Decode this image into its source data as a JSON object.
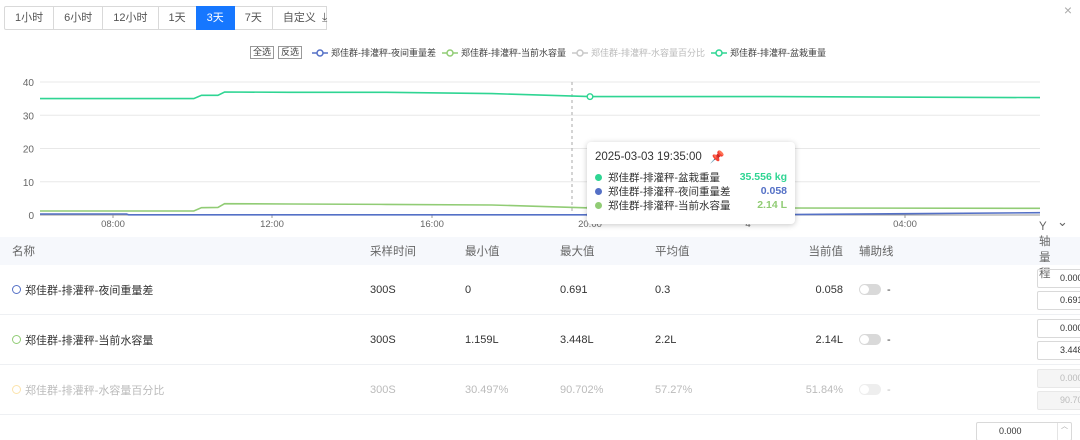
{
  "range_tabs": [
    {
      "label": "1小时"
    },
    {
      "label": "6小时"
    },
    {
      "label": "12小时"
    },
    {
      "label": "1天"
    },
    {
      "label": "3天",
      "active": true
    },
    {
      "label": "7天"
    },
    {
      "label": "自定义"
    }
  ],
  "toolbar": {
    "download_icon": "download-icon",
    "download_glyph": "⤓",
    "close_glyph": "×"
  },
  "legend": {
    "select_all": "全选",
    "invert": "反选",
    "items": [
      {
        "label": "郑佳群-排灌秤-夜间重量差",
        "color": "#5470c6",
        "enabled": true
      },
      {
        "label": "郑佳群-排灌秤-当前水容量",
        "color": "#91cc75",
        "enabled": true
      },
      {
        "label": "郑佳群-排灌秤-水容量百分比",
        "color": "#c8c8c8",
        "enabled": false
      },
      {
        "label": "郑佳群-排灌秤-盆栽重量",
        "color": "#2fd593",
        "enabled": true
      }
    ]
  },
  "chart_data": {
    "type": "line",
    "y_ticks": [
      "0",
      "10",
      "20",
      "30",
      "40"
    ],
    "ylim": [
      0,
      40
    ],
    "x_ticks": [
      "08:00",
      "12:00",
      "16:00",
      "20:00",
      "4",
      "04:00"
    ],
    "cursor_time": "2025-03-03 19:35:00",
    "series": [
      {
        "name": "郑佳群-排灌秤-盆栽重量",
        "color": "#2fd593",
        "points": [
          [
            0,
            35.0
          ],
          [
            160,
            35.0
          ],
          [
            168,
            36.0
          ],
          [
            185,
            36.0
          ],
          [
            192,
            37.0
          ],
          [
            260,
            36.9
          ],
          [
            360,
            36.9
          ],
          [
            470,
            36.5
          ],
          [
            572,
            35.6
          ],
          [
            760,
            35.6
          ],
          [
            1040,
            35.3
          ]
        ]
      },
      {
        "name": "郑佳群-排灌秤-当前水容量",
        "color": "#91cc75",
        "points": [
          [
            0,
            1.2
          ],
          [
            160,
            1.2
          ],
          [
            168,
            2.2
          ],
          [
            185,
            2.3
          ],
          [
            192,
            3.4
          ],
          [
            260,
            3.3
          ],
          [
            360,
            3.2
          ],
          [
            470,
            3.0
          ],
          [
            572,
            2.14
          ],
          [
            760,
            2.1
          ],
          [
            1040,
            2.0
          ]
        ]
      },
      {
        "name": "郑佳群-排灌秤-夜间重量差",
        "color": "#5470c6",
        "points": [
          [
            0,
            0.3
          ],
          [
            90,
            0.3
          ],
          [
            92,
            0.06
          ],
          [
            572,
            0.058
          ],
          [
            760,
            0.1
          ],
          [
            1040,
            0.7
          ]
        ]
      }
    ]
  },
  "tooltip": {
    "time": "2025-03-03 19:35:00",
    "pin_icon": "pin-icon",
    "rows": [
      {
        "label": "郑佳群-排灌秤-盆栽重量",
        "value": "35.556 kg",
        "color": "#2fd593"
      },
      {
        "label": "郑佳群-排灌秤-夜间重量差",
        "value": "0.058",
        "color": "#5470c6"
      },
      {
        "label": "郑佳群-排灌秤-当前水容量",
        "value": "2.14 L",
        "color": "#91cc75"
      }
    ]
  },
  "table": {
    "headers": {
      "name": "名称",
      "rate": "采样时间",
      "min": "最小值",
      "max": "最大值",
      "avg": "平均值",
      "cur": "当前值",
      "aux": "辅助线",
      "y": "Y轴量程"
    },
    "rows": [
      {
        "name": "郑佳群-排灌秤-夜间重量差",
        "ring": "#5470c6",
        "rate": "300S",
        "min": "0",
        "max": "0.691",
        "avg": "0.3",
        "cur": "0.058",
        "aux": "-",
        "ymin": "0.000",
        "ymax": "0.691",
        "disabled": false
      },
      {
        "name": "郑佳群-排灌秤-当前水容量",
        "ring": "#91cc75",
        "rate": "300S",
        "min": "1.159L",
        "max": "3.448L",
        "avg": "2.2L",
        "cur": "2.14L",
        "aux": "-",
        "ymin": "0.000",
        "ymax": "3.448",
        "disabled": false
      },
      {
        "name": "郑佳群-排灌秤-水容量百分比",
        "ring": "#fac858",
        "rate": "300S",
        "min": "30.497%",
        "max": "90.702%",
        "avg": "57.27%",
        "cur": "51.84%",
        "aux": "-",
        "ymin": "0.000",
        "ymax": "90.702",
        "disabled": true
      }
    ],
    "partial_row_ymin": "0.000"
  },
  "collapse_glyph": "⌄"
}
